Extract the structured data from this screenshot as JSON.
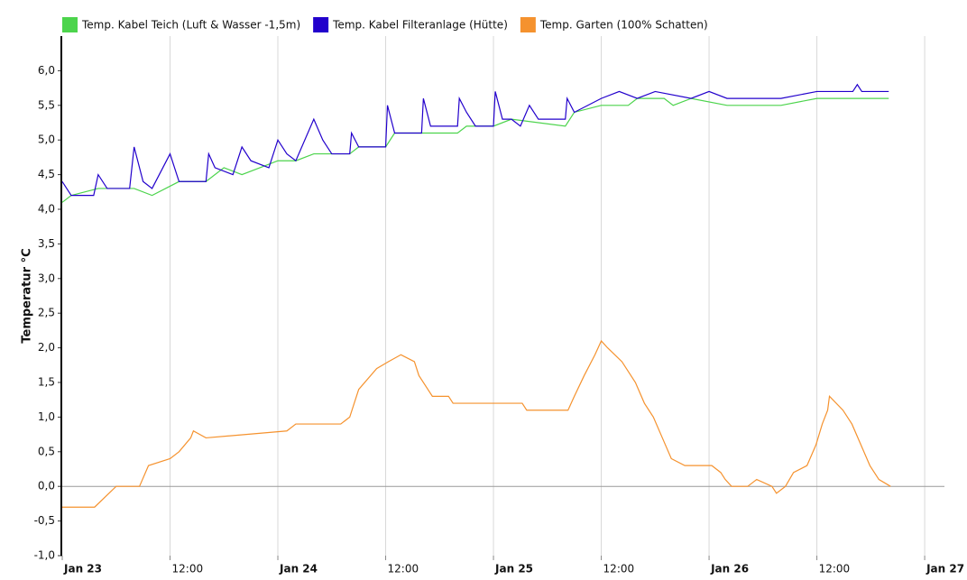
{
  "chart_data": {
    "type": "line",
    "y_label": "Temperatur °C",
    "xlim": [
      0,
      98.2
    ],
    "xticks": [
      {
        "value": 0,
        "label": "Jan 23"
      },
      {
        "value": 12,
        "label": "12:00"
      },
      {
        "value": 24,
        "label": "Jan 24"
      },
      {
        "value": 36,
        "label": "12:00"
      },
      {
        "value": 48,
        "label": "Jan 25"
      },
      {
        "value": 60,
        "label": "12:00"
      },
      {
        "value": 72,
        "label": "Jan 26"
      },
      {
        "value": 84,
        "label": "12:00"
      },
      {
        "value": 96,
        "label": "Jan 27"
      }
    ],
    "ylim": [
      -1,
      6.5
    ],
    "yticks": [
      {
        "value": -1,
        "label": "-1,0"
      },
      {
        "value": -0.5,
        "label": "-0,5"
      },
      {
        "value": 0,
        "label": "0,0"
      },
      {
        "value": 0.5,
        "label": "0,5"
      },
      {
        "value": 1,
        "label": "1,0"
      },
      {
        "value": 1.5,
        "label": "1,5"
      },
      {
        "value": 2,
        "label": "2,0"
      },
      {
        "value": 2.5,
        "label": "2,5"
      },
      {
        "value": 3,
        "label": "3,0"
      },
      {
        "value": 3.5,
        "label": "3,5"
      },
      {
        "value": 4,
        "label": "4,0"
      },
      {
        "value": 4.5,
        "label": "4,5"
      },
      {
        "value": 5,
        "label": "5,0"
      },
      {
        "value": 5.5,
        "label": "5,5"
      },
      {
        "value": 6,
        "label": "6,0"
      }
    ],
    "grid": true,
    "legend": "top",
    "series": [
      {
        "name": "Temp. Kabel Teich (Luft & Wasser -1,5m)",
        "color": "#4cd44c",
        "x": [
          0,
          1,
          4,
          8,
          10,
          13,
          16,
          18,
          20,
          22,
          24,
          26,
          28,
          32,
          33,
          36,
          37,
          44,
          45,
          48,
          50,
          56,
          57,
          60,
          63,
          64,
          67,
          68,
          70,
          74,
          80,
          84,
          92
        ],
        "values": [
          4.1,
          4.2,
          4.3,
          4.3,
          4.2,
          4.4,
          4.4,
          4.6,
          4.5,
          4.6,
          4.7,
          4.7,
          4.8,
          4.8,
          4.9,
          4.9,
          5.1,
          5.1,
          5.2,
          5.2,
          5.3,
          5.2,
          5.4,
          5.5,
          5.5,
          5.6,
          5.6,
          5.5,
          5.6,
          5.5,
          5.5,
          5.6,
          5.6
        ]
      },
      {
        "name": "Temp. Kabel Filteranlage (Hütte)",
        "color": "#2200cc",
        "x": [
          0,
          1,
          3.5,
          4,
          5,
          7.5,
          8,
          9,
          10,
          12,
          13,
          16,
          16.3,
          17,
          19,
          20,
          21,
          23,
          24,
          25,
          26,
          28,
          29,
          30,
          32,
          32.2,
          33,
          36,
          36.2,
          37,
          40,
          40.2,
          41,
          44,
          44.2,
          45,
          46,
          48,
          48.2,
          49,
          50,
          51,
          52,
          53,
          56,
          56.2,
          57,
          60,
          62,
          64,
          66,
          70,
          72,
          74,
          80,
          84,
          88,
          88.5,
          89,
          92
        ],
        "values": [
          4.4,
          4.2,
          4.2,
          4.5,
          4.3,
          4.3,
          4.9,
          4.4,
          4.3,
          4.8,
          4.4,
          4.4,
          4.8,
          4.6,
          4.5,
          4.9,
          4.7,
          4.6,
          5.0,
          4.8,
          4.7,
          5.3,
          5.0,
          4.8,
          4.8,
          5.1,
          4.9,
          4.9,
          5.5,
          5.1,
          5.1,
          5.6,
          5.2,
          5.2,
          5.6,
          5.4,
          5.2,
          5.2,
          5.7,
          5.3,
          5.3,
          5.2,
          5.5,
          5.3,
          5.3,
          5.6,
          5.4,
          5.6,
          5.7,
          5.6,
          5.7,
          5.6,
          5.7,
          5.6,
          5.6,
          5.7,
          5.7,
          5.8,
          5.7,
          5.7
        ]
      },
      {
        "name": "Temp. Garten (100% Schatten)",
        "color": "#f5922e",
        "x": [
          0,
          3.6,
          6,
          8.6,
          9.6,
          12,
          13,
          14.3,
          14.6,
          16,
          25,
          26,
          31,
          32,
          33,
          35,
          36.3,
          37.7,
          39.2,
          39.7,
          40.7,
          41.2,
          43,
          43.5,
          51.2,
          51.7,
          56.3,
          57,
          58.1,
          59.3,
          60,
          60.7,
          62.3,
          63.8,
          64.8,
          65.8,
          66.8,
          67.8,
          69.3,
          72.3,
          73.3,
          73.8,
          74.5,
          76.3,
          77.3,
          79,
          79.5,
          80.5,
          81.4,
          82.9,
          83.9,
          84.6,
          85.2,
          85.4,
          86.9,
          87.9,
          88.9,
          89.9,
          90.9,
          92.2
        ],
        "values": [
          -0.3,
          -0.3,
          0,
          0,
          0.3,
          0.4,
          0.5,
          0.7,
          0.8,
          0.7,
          0.8,
          0.9,
          0.9,
          1.0,
          1.4,
          1.7,
          1.8,
          1.9,
          1.8,
          1.6,
          1.4,
          1.3,
          1.3,
          1.2,
          1.2,
          1.1,
          1.1,
          1.3,
          1.6,
          1.9,
          2.1,
          2.0,
          1.8,
          1.5,
          1.2,
          1.0,
          0.7,
          0.4,
          0.3,
          0.3,
          0.2,
          0.1,
          0,
          0,
          0.1,
          0,
          -0.1,
          0,
          0.2,
          0.3,
          0.6,
          0.9,
          1.1,
          1.3,
          1.1,
          0.9,
          0.6,
          0.3,
          0.1,
          0
        ]
      }
    ]
  }
}
